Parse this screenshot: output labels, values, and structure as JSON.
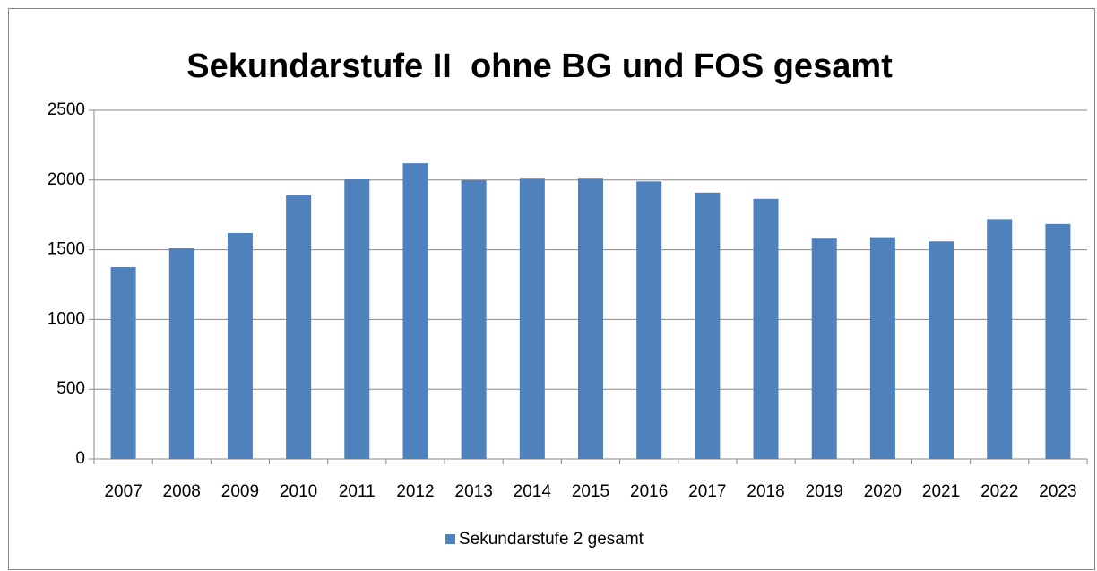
{
  "chart_data": {
    "type": "bar",
    "title": "Sekundarstufe II  ohne BG und FOS gesamt",
    "categories": [
      "2007",
      "2008",
      "2009",
      "2010",
      "2011",
      "2012",
      "2013",
      "2014",
      "2015",
      "2016",
      "2017",
      "2018",
      "2019",
      "2020",
      "2021",
      "2022",
      "2023"
    ],
    "series": [
      {
        "name": "Sekundarstufe 2 gesamt",
        "color": "#4f81bd",
        "values": [
          1375,
          1510,
          1620,
          1890,
          2005,
          2120,
          2000,
          2010,
          2010,
          1990,
          1910,
          1865,
          1580,
          1590,
          1560,
          1720,
          1685
        ]
      }
    ],
    "ylim": [
      0,
      2500
    ],
    "yticks": [
      0,
      500,
      1000,
      1500,
      2000,
      2500
    ],
    "grid": true,
    "legend": "bottom"
  }
}
